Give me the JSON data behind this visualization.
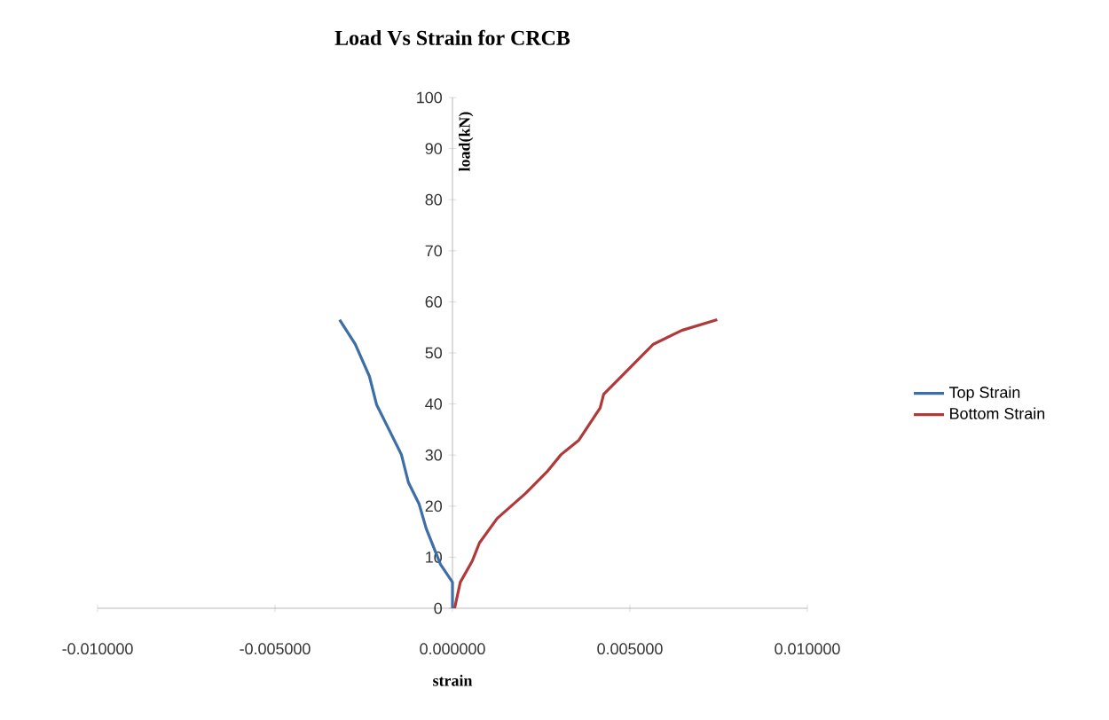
{
  "chart_data": {
    "type": "line",
    "title": "Load Vs Strain  for CRCB",
    "xlabel": "strain",
    "ylabel": "load(kN)",
    "xlim": [
      -0.01,
      0.01
    ],
    "xticks": [
      {
        "value": -0.01,
        "label": "-0.010000"
      },
      {
        "value": -0.005,
        "label": "-0.005000"
      },
      {
        "value": 0,
        "label": "0.000000"
      },
      {
        "value": 0.005,
        "label": "0.005000"
      },
      {
        "value": 0.01,
        "label": "0.010000"
      }
    ],
    "ylim": [
      0,
      100
    ],
    "yticks": [
      0,
      10,
      20,
      30,
      40,
      50,
      60,
      70,
      80,
      90,
      100
    ],
    "legend": "right",
    "marker": "none",
    "line_style": "solid",
    "series": [
      {
        "name": "Top Strain",
        "color": "#3d6ea8",
        "x": [
          0,
          0,
          -0.00034,
          -0.00074,
          -0.00094,
          -0.00124,
          -0.00144,
          -0.00184,
          -0.00214,
          -0.00234,
          -0.00274,
          -0.00318
        ],
        "values": [
          0,
          5.1,
          8.6,
          15.6,
          20.4,
          24.6,
          30.1,
          35.7,
          39.9,
          45.4,
          51.7,
          56.5
        ]
      },
      {
        "name": "Bottom Strain",
        "color": "#b03a3a",
        "x": [
          6e-05,
          0.00022,
          0.00056,
          0.00076,
          0.00126,
          0.00206,
          0.00266,
          0.00306,
          0.00356,
          0.00416,
          0.00426,
          0.00496,
          0.00566,
          0.00646,
          0.00746
        ],
        "values": [
          0,
          5.1,
          9.3,
          12.8,
          17.6,
          22.5,
          26.7,
          30.1,
          32.9,
          39.2,
          41.9,
          46.8,
          51.7,
          54.4,
          56.5
        ]
      }
    ]
  }
}
